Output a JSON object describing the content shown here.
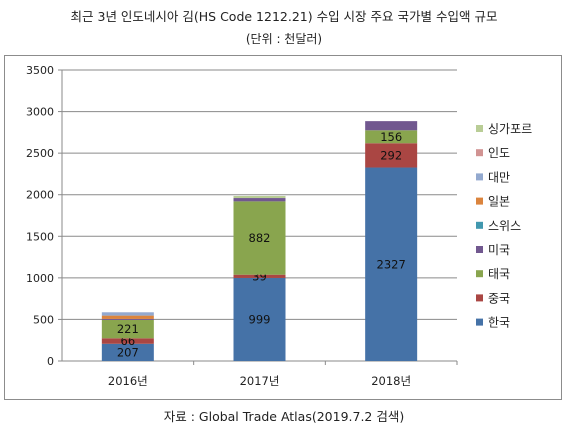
{
  "title": "최근 3년 인도네시아 김(HS Code 1212.21) 수입 시장 주요 국가별 수입액 규모",
  "subtitle": "(단위 : 천달러)",
  "source": "자료 : Global Trade Atlas(2019.7.2 검색)",
  "chart_data": {
    "type": "bar",
    "stacked": true,
    "categories": [
      "2016년",
      "2017년",
      "2018년"
    ],
    "ylim": [
      0,
      3500
    ],
    "yticks": [
      0,
      500,
      1000,
      1500,
      2000,
      2500,
      3000,
      3500
    ],
    "grid": true,
    "legend_position": "right",
    "series": [
      {
        "name": "한국",
        "color": "#4572A7",
        "values": [
          207,
          999,
          2327
        ],
        "labels": [
          true,
          true,
          true
        ]
      },
      {
        "name": "중국",
        "color": "#AA4643",
        "values": [
          66,
          39,
          292
        ],
        "labels": [
          true,
          true,
          true
        ]
      },
      {
        "name": "태국",
        "color": "#89A54E",
        "values": [
          221,
          882,
          156
        ],
        "labels": [
          true,
          true,
          true
        ]
      },
      {
        "name": "미국",
        "color": "#71588F",
        "values": [
          12,
          40,
          110
        ],
        "labels": [
          false,
          false,
          false
        ]
      },
      {
        "name": "스위스",
        "color": "#4198AF",
        "values": [
          0,
          0,
          0
        ],
        "labels": [
          false,
          false,
          false
        ]
      },
      {
        "name": "일본",
        "color": "#DB843D",
        "values": [
          40,
          0,
          0
        ],
        "labels": [
          false,
          false,
          false
        ]
      },
      {
        "name": "대만",
        "color": "#93A9CF",
        "values": [
          40,
          0,
          0
        ],
        "labels": [
          false,
          false,
          false
        ]
      },
      {
        "name": "인도",
        "color": "#D19392",
        "values": [
          0,
          0,
          0
        ],
        "labels": [
          false,
          false,
          false
        ]
      },
      {
        "name": "싱가포르",
        "color": "#B9CD96",
        "values": [
          0,
          25,
          0
        ],
        "labels": [
          false,
          false,
          false
        ]
      }
    ]
  }
}
